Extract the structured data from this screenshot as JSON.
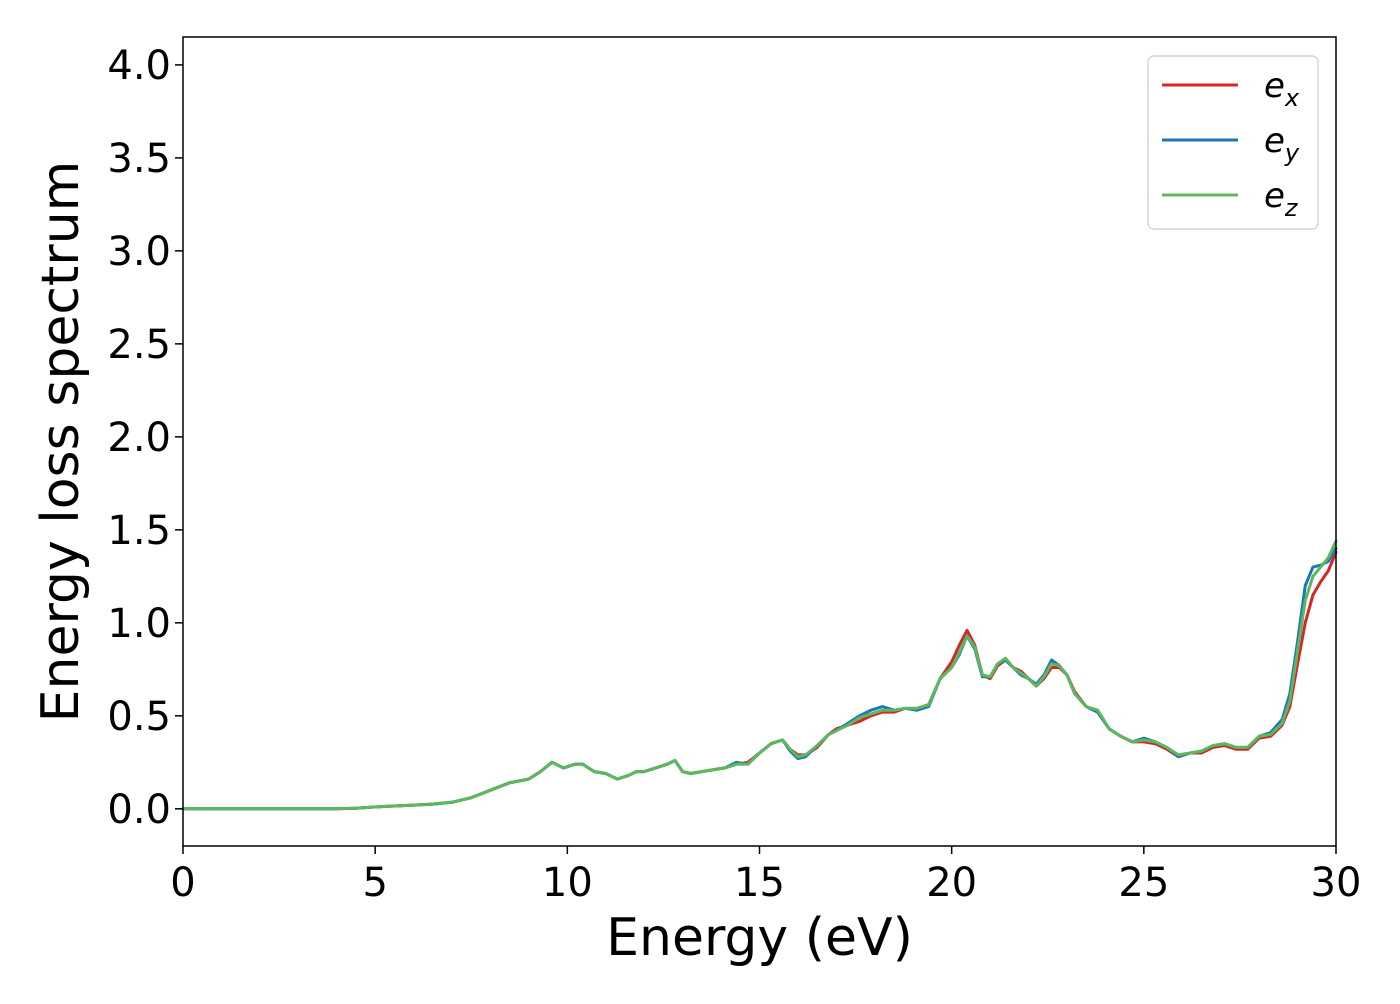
{
  "chart_data": {
    "type": "line",
    "title": "",
    "xlabel": "Energy (eV)",
    "ylabel": "Energy loss spectrum",
    "xlim": [
      0,
      30
    ],
    "ylim": [
      -0.2,
      4.15
    ],
    "xticks": [
      0,
      5,
      10,
      15,
      20,
      25,
      30
    ],
    "yticks": [
      0.0,
      0.5,
      1.0,
      1.5,
      2.0,
      2.5,
      3.0,
      3.5,
      4.0
    ],
    "grid": false,
    "legend_position": "top-right",
    "series": [
      {
        "name": "e",
        "sub": "x",
        "color": "#d62728",
        "x": [
          0,
          1,
          2,
          3,
          4,
          4.5,
          5,
          5.5,
          6,
          6.5,
          7,
          7.5,
          8,
          8.5,
          9,
          9.3,
          9.6,
          9.9,
          10.2,
          10.4,
          10.7,
          11,
          11.3,
          11.6,
          11.8,
          12,
          12.3,
          12.6,
          12.8,
          13,
          13.2,
          13.5,
          13.8,
          14.1,
          14.4,
          14.7,
          15,
          15.3,
          15.6,
          15.8,
          16,
          16.2,
          16.5,
          16.8,
          17,
          17.3,
          17.6,
          17.9,
          18.2,
          18.5,
          18.8,
          19.1,
          19.4,
          19.7,
          20,
          20.2,
          20.4,
          20.6,
          20.8,
          21,
          21.2,
          21.4,
          21.6,
          21.8,
          22,
          22.2,
          22.4,
          22.6,
          22.8,
          23,
          23.2,
          23.5,
          23.8,
          24.1,
          24.4,
          24.7,
          25,
          25.3,
          25.6,
          25.9,
          26.2,
          26.5,
          26.8,
          27.1,
          27.4,
          27.7,
          28,
          28.3,
          28.6,
          28.8,
          29,
          29.2,
          29.4,
          29.6,
          29.8,
          30
        ],
        "y": [
          0,
          0,
          0,
          0,
          0,
          0.003,
          0.01,
          0.015,
          0.02,
          0.025,
          0.035,
          0.06,
          0.1,
          0.14,
          0.16,
          0.2,
          0.25,
          0.22,
          0.24,
          0.24,
          0.2,
          0.19,
          0.16,
          0.18,
          0.2,
          0.2,
          0.22,
          0.24,
          0.26,
          0.2,
          0.19,
          0.2,
          0.21,
          0.22,
          0.24,
          0.25,
          0.3,
          0.35,
          0.37,
          0.32,
          0.29,
          0.29,
          0.33,
          0.4,
          0.43,
          0.45,
          0.47,
          0.5,
          0.52,
          0.52,
          0.54,
          0.54,
          0.56,
          0.7,
          0.79,
          0.88,
          0.96,
          0.88,
          0.72,
          0.7,
          0.77,
          0.8,
          0.76,
          0.74,
          0.7,
          0.66,
          0.7,
          0.76,
          0.76,
          0.72,
          0.63,
          0.55,
          0.52,
          0.43,
          0.39,
          0.36,
          0.36,
          0.35,
          0.32,
          0.28,
          0.3,
          0.3,
          0.33,
          0.34,
          0.32,
          0.32,
          0.38,
          0.39,
          0.45,
          0.55,
          0.78,
          1.0,
          1.15,
          1.22,
          1.28,
          1.38
        ]
      },
      {
        "name": "e",
        "sub": "y",
        "color": "#1f77b4",
        "x": [
          0,
          1,
          2,
          3,
          4,
          4.5,
          5,
          5.5,
          6,
          6.5,
          7,
          7.5,
          8,
          8.5,
          9,
          9.3,
          9.6,
          9.9,
          10.2,
          10.4,
          10.7,
          11,
          11.3,
          11.6,
          11.8,
          12,
          12.3,
          12.6,
          12.8,
          13,
          13.2,
          13.5,
          13.8,
          14.1,
          14.4,
          14.7,
          15,
          15.3,
          15.6,
          15.8,
          16,
          16.2,
          16.5,
          16.8,
          17,
          17.3,
          17.6,
          17.9,
          18.2,
          18.5,
          18.8,
          19.1,
          19.4,
          19.7,
          20,
          20.2,
          20.4,
          20.6,
          20.8,
          21,
          21.2,
          21.4,
          21.6,
          21.8,
          22,
          22.2,
          22.4,
          22.6,
          22.8,
          23,
          23.2,
          23.5,
          23.8,
          24.1,
          24.4,
          24.7,
          25,
          25.3,
          25.6,
          25.9,
          26.2,
          26.5,
          26.8,
          27.1,
          27.4,
          27.7,
          28,
          28.3,
          28.6,
          28.8,
          29,
          29.2,
          29.4,
          29.6,
          29.8,
          30
        ],
        "y": [
          0,
          0,
          0,
          0,
          0,
          0.003,
          0.01,
          0.015,
          0.02,
          0.025,
          0.035,
          0.06,
          0.1,
          0.14,
          0.16,
          0.2,
          0.25,
          0.22,
          0.24,
          0.24,
          0.2,
          0.19,
          0.16,
          0.18,
          0.2,
          0.2,
          0.22,
          0.24,
          0.26,
          0.2,
          0.19,
          0.2,
          0.21,
          0.22,
          0.25,
          0.24,
          0.3,
          0.35,
          0.37,
          0.31,
          0.27,
          0.28,
          0.34,
          0.4,
          0.42,
          0.46,
          0.5,
          0.53,
          0.55,
          0.53,
          0.54,
          0.53,
          0.55,
          0.7,
          0.76,
          0.83,
          0.93,
          0.86,
          0.71,
          0.71,
          0.78,
          0.8,
          0.76,
          0.72,
          0.7,
          0.67,
          0.72,
          0.8,
          0.77,
          0.72,
          0.62,
          0.55,
          0.52,
          0.43,
          0.39,
          0.36,
          0.38,
          0.36,
          0.33,
          0.28,
          0.3,
          0.31,
          0.34,
          0.35,
          0.33,
          0.33,
          0.39,
          0.41,
          0.48,
          0.62,
          0.9,
          1.2,
          1.3,
          1.31,
          1.33,
          1.4
        ]
      },
      {
        "name": "e",
        "sub": "z",
        "color": "#5cb85c",
        "x": [
          0,
          1,
          2,
          3,
          4,
          4.5,
          5,
          5.5,
          6,
          6.5,
          7,
          7.5,
          8,
          8.5,
          9,
          9.3,
          9.6,
          9.9,
          10.2,
          10.4,
          10.7,
          11,
          11.3,
          11.6,
          11.8,
          12,
          12.3,
          12.6,
          12.8,
          13,
          13.2,
          13.5,
          13.8,
          14.1,
          14.4,
          14.7,
          15,
          15.3,
          15.6,
          15.8,
          16,
          16.2,
          16.5,
          16.8,
          17,
          17.3,
          17.6,
          17.9,
          18.2,
          18.5,
          18.8,
          19.1,
          19.4,
          19.7,
          20,
          20.2,
          20.4,
          20.6,
          20.8,
          21,
          21.2,
          21.4,
          21.6,
          21.8,
          22,
          22.2,
          22.4,
          22.6,
          22.8,
          23,
          23.2,
          23.5,
          23.8,
          24.1,
          24.4,
          24.7,
          25,
          25.3,
          25.6,
          25.9,
          26.2,
          26.5,
          26.8,
          27.1,
          27.4,
          27.7,
          28,
          28.3,
          28.6,
          28.8,
          29,
          29.2,
          29.4,
          29.6,
          29.8,
          30
        ],
        "y": [
          0,
          0,
          0,
          0,
          0,
          0.003,
          0.01,
          0.015,
          0.02,
          0.025,
          0.035,
          0.06,
          0.1,
          0.14,
          0.16,
          0.2,
          0.25,
          0.22,
          0.24,
          0.24,
          0.2,
          0.19,
          0.16,
          0.18,
          0.2,
          0.2,
          0.22,
          0.24,
          0.26,
          0.2,
          0.19,
          0.2,
          0.21,
          0.22,
          0.24,
          0.24,
          0.3,
          0.35,
          0.37,
          0.32,
          0.28,
          0.29,
          0.34,
          0.4,
          0.42,
          0.45,
          0.49,
          0.51,
          0.53,
          0.53,
          0.54,
          0.54,
          0.56,
          0.7,
          0.76,
          0.84,
          0.93,
          0.87,
          0.72,
          0.71,
          0.78,
          0.81,
          0.76,
          0.73,
          0.7,
          0.66,
          0.71,
          0.78,
          0.77,
          0.72,
          0.62,
          0.55,
          0.53,
          0.43,
          0.39,
          0.36,
          0.37,
          0.36,
          0.33,
          0.29,
          0.3,
          0.31,
          0.34,
          0.35,
          0.33,
          0.33,
          0.39,
          0.4,
          0.46,
          0.58,
          0.85,
          1.12,
          1.25,
          1.3,
          1.35,
          1.44
        ]
      }
    ]
  }
}
